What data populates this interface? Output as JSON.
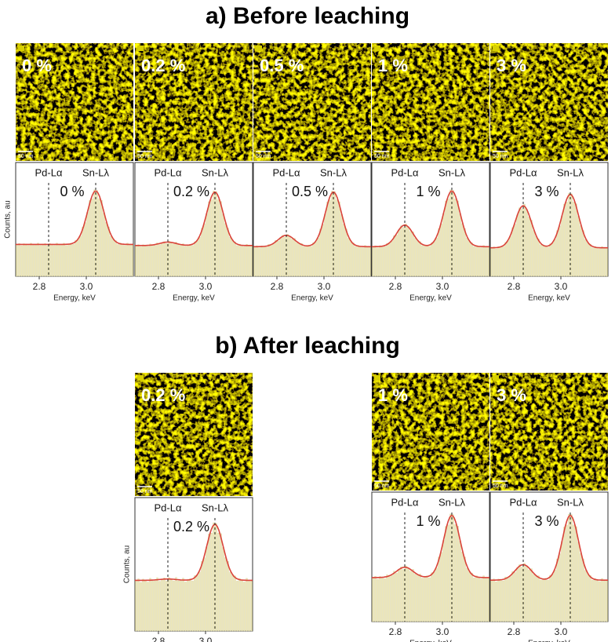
{
  "figure": {
    "sections": [
      {
        "title": "a) Before leaching",
        "panels": [
          {
            "label": "0 %",
            "baseline": 0.28,
            "pd_height": 0.28,
            "sn_height": 0.75
          },
          {
            "label": "0.2 %",
            "baseline": 0.27,
            "pd_height": 0.3,
            "sn_height": 0.74
          },
          {
            "label": "0.5 %",
            "baseline": 0.26,
            "pd_height": 0.36,
            "sn_height": 0.74
          },
          {
            "label": "1 %",
            "baseline": 0.26,
            "pd_height": 0.45,
            "sn_height": 0.75
          },
          {
            "label": "3 %",
            "baseline": 0.25,
            "pd_height": 0.62,
            "sn_height": 0.72
          }
        ]
      },
      {
        "title": "b) After leaching",
        "panels": [
          {
            "label": "0.2 %",
            "baseline": 0.38,
            "pd_height": 0.39,
            "sn_height": 0.8
          },
          {
            "label": "1 %",
            "baseline": 0.34,
            "pd_height": 0.42,
            "sn_height": 0.82
          },
          {
            "label": "3 %",
            "baseline": 0.32,
            "pd_height": 0.44,
            "sn_height": 0.82
          }
        ]
      }
    ],
    "scale_bar": "50 nm",
    "spectrum": {
      "peaks": [
        {
          "name": "Pd-Lα",
          "energy": 2.84
        },
        {
          "name": "Sn-Lλ",
          "energy": 3.04
        }
      ],
      "xlim": [
        2.7,
        3.2
      ],
      "xticks": [
        2.8,
        {
          "value": 3,
          "label": "3.0"
        }
      ],
      "ylim": [
        0,
        1
      ],
      "xlabel": "Energy, keV",
      "ylabel": "Counts, au"
    }
  }
}
